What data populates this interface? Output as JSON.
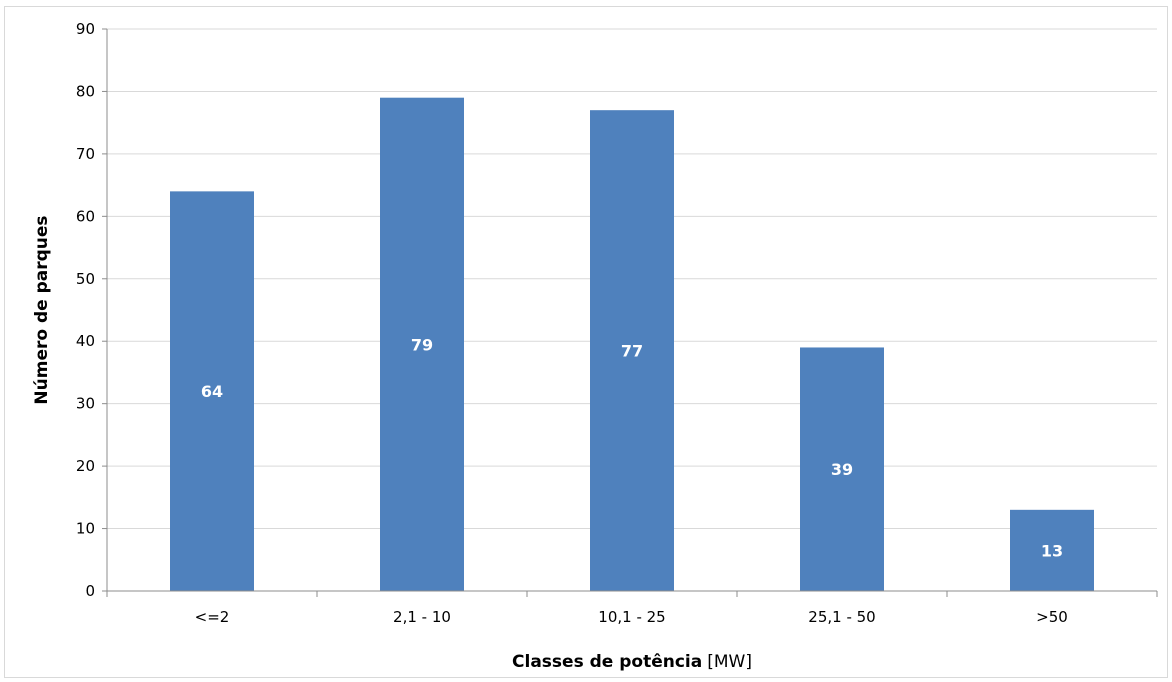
{
  "chart_data": {
    "type": "bar",
    "title": "",
    "categories": [
      "<=2",
      "2,1 - 10",
      "10,1 - 25",
      "25,1 - 50",
      ">50"
    ],
    "values": [
      64,
      79,
      77,
      39,
      13
    ],
    "xlabel": "Classes de potência",
    "xlabel_unit": "[MW]",
    "ylabel": "Número de parques",
    "ylim": [
      0,
      90
    ],
    "yticks": [
      0,
      10,
      20,
      30,
      40,
      50,
      60,
      70,
      80,
      90
    ],
    "grid": true,
    "legend": "none",
    "bar_color": "#4f81bd",
    "gridline_color": "#d9d9d9",
    "data_labels": true
  }
}
